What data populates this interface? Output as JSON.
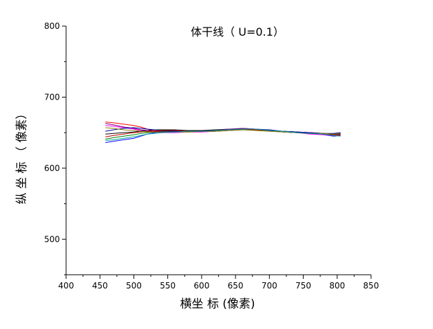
{
  "chart_data": {
    "type": "line",
    "title": "体干线（ U=0.1）",
    "xlabel": "横坐 标 (像素)",
    "ylabel": "纵 坐 标 （ 像素）",
    "xlim": [
      400,
      850
    ],
    "ylim": [
      450,
      800
    ],
    "xticks": [
      "400",
      "450",
      "500",
      "550",
      "600",
      "650",
      "700",
      "750",
      "800",
      "850"
    ],
    "yticks": [
      "500",
      "600",
      "700",
      "800"
    ],
    "grid": false,
    "legend": "none",
    "series": [
      {
        "color": "#ff0000",
        "x": [
          458,
          470,
          485,
          500,
          510,
          520,
          530,
          540,
          560,
          580,
          600,
          620,
          640,
          660,
          680,
          700,
          720,
          740,
          760,
          780,
          795,
          805
        ],
        "y": [
          665,
          664,
          662,
          660,
          658,
          655,
          653,
          652,
          652,
          651,
          651,
          652,
          654,
          655,
          654,
          653,
          651,
          650,
          649,
          648,
          648,
          649
        ]
      },
      {
        "color": "#0000ff",
        "x": [
          458,
          470,
          485,
          500,
          510,
          520,
          530,
          540,
          560,
          580,
          600,
          620,
          640,
          660,
          680,
          700,
          720,
          740,
          760,
          780,
          795,
          805
        ],
        "y": [
          636,
          638,
          640,
          642,
          645,
          648,
          650,
          651,
          652,
          652,
          653,
          653,
          654,
          656,
          655,
          653,
          651,
          650,
          649,
          647,
          645,
          646
        ]
      },
      {
        "color": "#ff00ff",
        "x": [
          458,
          470,
          485,
          500,
          510,
          520,
          530,
          540,
          560,
          580,
          600,
          620,
          640,
          660,
          680,
          700,
          720,
          740,
          760,
          780,
          795,
          805
        ],
        "y": [
          660,
          659,
          657,
          655,
          653,
          652,
          651,
          650,
          650,
          651,
          651,
          652,
          653,
          654,
          654,
          652,
          651,
          650,
          648,
          647,
          646,
          648
        ]
      },
      {
        "color": "#000000",
        "x": [
          458,
          470,
          485,
          500,
          510,
          520,
          530,
          540,
          560,
          580,
          600,
          620,
          640,
          660,
          680,
          700,
          720,
          740,
          760,
          780,
          795,
          805
        ],
        "y": [
          648,
          649,
          650,
          651,
          652,
          653,
          654,
          654,
          654,
          653,
          653,
          654,
          655,
          655,
          654,
          653,
          652,
          651,
          650,
          649,
          648,
          649
        ]
      },
      {
        "color": "#008000",
        "x": [
          458,
          470,
          485,
          500,
          510,
          520,
          530,
          540,
          560,
          580,
          600,
          620,
          640,
          660,
          680,
          700,
          720,
          740,
          760,
          780,
          795,
          805
        ],
        "y": [
          641,
          643,
          645,
          647,
          649,
          650,
          651,
          652,
          652,
          652,
          652,
          653,
          654,
          655,
          654,
          653,
          651,
          650,
          649,
          648,
          647,
          648
        ]
      },
      {
        "color": "#800080",
        "x": [
          458,
          470,
          485,
          500,
          510,
          520,
          530,
          540,
          560,
          580,
          600,
          620,
          640,
          660,
          680,
          700,
          720,
          740,
          760,
          780,
          795,
          805
        ],
        "y": [
          663,
          661,
          658,
          656,
          654,
          653,
          652,
          651,
          651,
          651,
          652,
          653,
          655,
          656,
          655,
          653,
          652,
          651,
          650,
          649,
          648,
          647
        ]
      },
      {
        "color": "#0000a0",
        "x": [
          458,
          470,
          485,
          500,
          510,
          520,
          530,
          540,
          560,
          580,
          600,
          620,
          640,
          660,
          680,
          700,
          720,
          740,
          760,
          780,
          795,
          805
        ],
        "y": [
          652,
          654,
          656,
          657,
          656,
          655,
          654,
          653,
          652,
          652,
          652,
          653,
          654,
          655,
          655,
          654,
          652,
          651,
          650,
          649,
          649,
          650
        ]
      },
      {
        "color": "#c00000",
        "x": [
          458,
          470,
          485,
          500,
          510,
          520,
          530,
          540,
          560,
          580,
          600,
          620,
          640,
          660,
          680,
          700,
          720,
          740,
          760,
          780,
          795,
          805
        ],
        "y": [
          644,
          646,
          648,
          650,
          651,
          652,
          652,
          653,
          653,
          652,
          652,
          652,
          653,
          654,
          654,
          653,
          651,
          650,
          649,
          648,
          647,
          646
        ]
      },
      {
        "color": "#808000",
        "x": [
          458,
          470,
          485,
          500,
          510,
          520,
          530,
          540,
          560,
          580,
          600,
          620,
          640,
          660,
          680,
          700,
          720,
          740,
          760,
          780,
          795,
          805
        ],
        "y": [
          657,
          656,
          654,
          653,
          652,
          651,
          651,
          650,
          651,
          651,
          652,
          652,
          653,
          654,
          653,
          652,
          651,
          650,
          649,
          649,
          648,
          649
        ]
      },
      {
        "color": "#00a0a0",
        "x": [
          458,
          470,
          485,
          500,
          510,
          520,
          530,
          540,
          560,
          580,
          600,
          620,
          640,
          660,
          680,
          700,
          720,
          740,
          760,
          780,
          795,
          805
        ],
        "y": [
          639,
          640,
          642,
          644,
          646,
          648,
          649,
          650,
          651,
          652,
          652,
          653,
          654,
          655,
          655,
          653,
          652,
          650,
          649,
          648,
          646,
          645
        ]
      }
    ]
  }
}
